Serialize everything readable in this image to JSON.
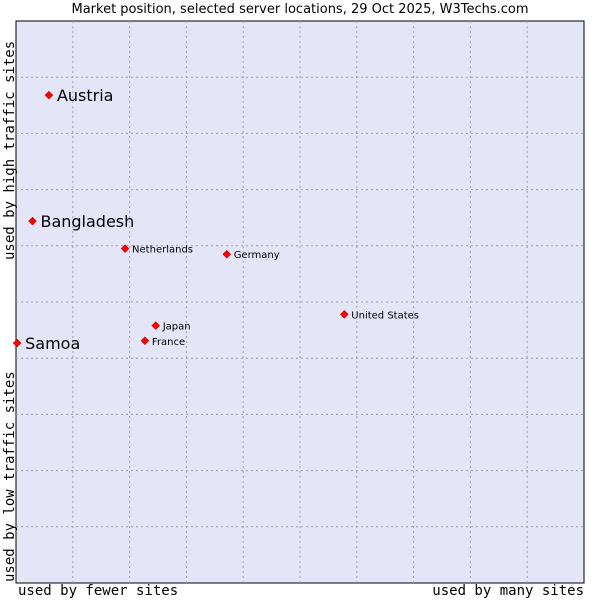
{
  "chart_data": {
    "type": "scatter",
    "title": "Market position, selected server locations, 29 Oct 2025, W3Techs.com",
    "xlabel_left": "used by fewer sites",
    "xlabel_right": "used by many sites",
    "ylabel_bottom": "used by low traffic sites",
    "ylabel_top": "used by high traffic sites",
    "xlim": [
      0,
      100
    ],
    "ylim": [
      0,
      100
    ],
    "grid": true,
    "background_color": "#e4e6f7",
    "marker_color": "#ff0000",
    "points": [
      {
        "name": "Austria",
        "x": 5.8,
        "y": 86.8,
        "highlight": true
      },
      {
        "name": "Bangladesh",
        "x": 2.9,
        "y": 64.4,
        "highlight": true
      },
      {
        "name": "Samoa",
        "x": 0.2,
        "y": 42.7,
        "highlight": true
      },
      {
        "name": "Netherlands",
        "x": 19.2,
        "y": 59.5,
        "highlight": false
      },
      {
        "name": "Germany",
        "x": 37.1,
        "y": 58.5,
        "highlight": false
      },
      {
        "name": "United States",
        "x": 57.8,
        "y": 47.8,
        "highlight": false
      },
      {
        "name": "Japan",
        "x": 24.6,
        "y": 45.8,
        "highlight": false
      },
      {
        "name": "France",
        "x": 22.7,
        "y": 43.1,
        "highlight": false
      }
    ]
  }
}
